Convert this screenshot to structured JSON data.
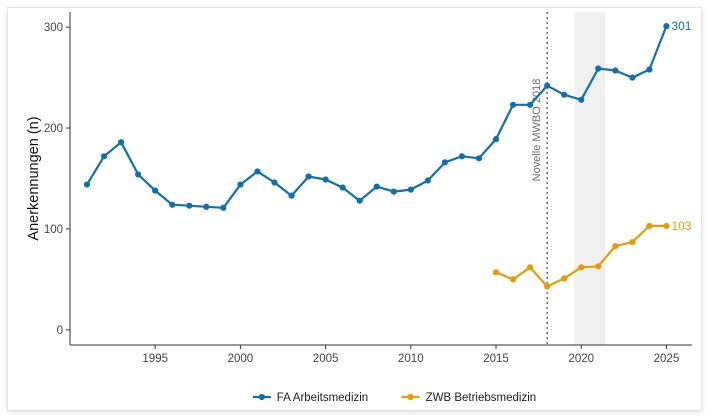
{
  "chart_data": {
    "type": "line",
    "title": "",
    "xlabel": "",
    "ylabel": "Anerkennungen (n)",
    "x_ticks": [
      1995,
      2000,
      2005,
      2010,
      2015,
      2020,
      2025
    ],
    "y_ticks": [
      0,
      100,
      200,
      300
    ],
    "xlim": [
      1990,
      2026.5
    ],
    "ylim": [
      -15,
      315
    ],
    "grid": false,
    "legend_position": "bottom",
    "series": [
      {
        "name": "FA Arbeitsmedizin",
        "color": "#1170aa",
        "end_label": "301",
        "x": [
          1991,
          1992,
          1993,
          1994,
          1995,
          1996,
          1997,
          1998,
          1999,
          2000,
          2001,
          2002,
          2003,
          2004,
          2005,
          2006,
          2007,
          2008,
          2009,
          2010,
          2011,
          2012,
          2013,
          2014,
          2015,
          2016,
          2017,
          2018,
          2019,
          2020,
          2021,
          2022,
          2023,
          2024,
          2025
        ],
        "y": [
          144,
          172,
          186,
          154,
          138,
          124,
          123,
          122,
          121,
          144,
          157,
          146,
          133,
          152,
          149,
          141,
          128,
          142,
          137,
          139,
          148,
          166,
          172,
          170,
          189,
          223,
          223,
          242,
          233,
          228,
          259,
          257,
          250,
          258,
          301
        ]
      },
      {
        "name": "ZWB Betriebsmedizin",
        "color": "#e39c04",
        "end_label": "103",
        "x": [
          2015,
          2016,
          2017,
          2018,
          2019,
          2020,
          2021,
          2022,
          2023,
          2024,
          2025
        ],
        "y": [
          57,
          50,
          62,
          43,
          51,
          62,
          63,
          83,
          87,
          103,
          103
        ]
      }
    ],
    "annotations": [
      {
        "type": "vline",
        "x": 2018,
        "label": "Novelle MWBO 2018"
      },
      {
        "type": "shaded_region",
        "x": [
          2019.6,
          2021.4
        ]
      }
    ]
  }
}
